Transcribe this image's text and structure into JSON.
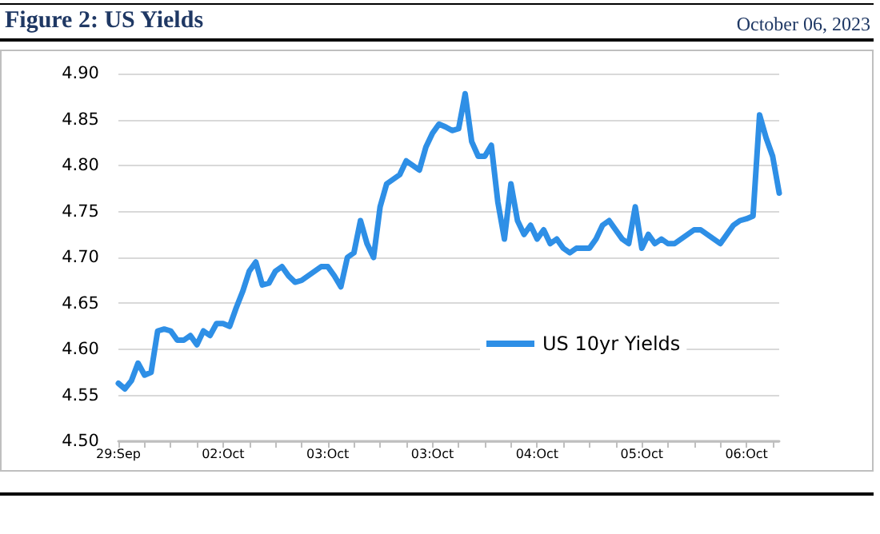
{
  "chart_data": {
    "type": "line",
    "title": "Figure 2: US Yields",
    "subtitle": "October 06, 2023",
    "categories": [
      "29:Sep",
      null,
      null,
      null,
      null,
      null,
      null,
      null,
      null,
      null,
      null,
      null,
      null,
      null,
      null,
      null,
      "02:Oct",
      null,
      null,
      null,
      null,
      null,
      null,
      null,
      null,
      null,
      null,
      null,
      null,
      null,
      null,
      null,
      "03:Oct",
      null,
      null,
      null,
      null,
      null,
      null,
      null,
      null,
      null,
      null,
      null,
      null,
      null,
      null,
      null,
      "03:Oct",
      null,
      null,
      null,
      null,
      null,
      null,
      null,
      null,
      null,
      null,
      null,
      null,
      null,
      null,
      null,
      "04:Oct",
      null,
      null,
      null,
      null,
      null,
      null,
      null,
      null,
      null,
      null,
      null,
      null,
      null,
      null,
      null,
      "05:Oct",
      null,
      null,
      null,
      null,
      null,
      null,
      null,
      null,
      null,
      null,
      null,
      null,
      null,
      null,
      null,
      "06:Oct",
      null,
      null,
      null,
      null,
      null
    ],
    "series": [
      {
        "name": "US 10yr Yields",
        "color": "#2e8fe6",
        "values": [
          4.563,
          4.557,
          4.566,
          4.585,
          4.572,
          4.575,
          4.62,
          4.622,
          4.62,
          4.61,
          4.61,
          4.615,
          4.605,
          4.62,
          4.615,
          4.628,
          4.628,
          4.625,
          4.645,
          4.663,
          4.685,
          4.695,
          4.67,
          4.672,
          4.685,
          4.69,
          4.68,
          4.673,
          4.675,
          4.68,
          4.685,
          4.69,
          4.69,
          4.68,
          4.668,
          4.7,
          4.705,
          4.74,
          4.715,
          4.7,
          4.755,
          4.78,
          4.785,
          4.79,
          4.805,
          4.8,
          4.795,
          4.82,
          4.835,
          4.845,
          4.842,
          4.838,
          4.84,
          4.878,
          4.826,
          4.81,
          4.81,
          4.822,
          4.76,
          4.72,
          4.78,
          4.74,
          4.725,
          4.735,
          4.72,
          4.73,
          4.715,
          4.72,
          4.71,
          4.705,
          4.71,
          4.71,
          4.71,
          4.72,
          4.735,
          4.74,
          4.73,
          4.72,
          4.715,
          4.755,
          4.71,
          4.725,
          4.715,
          4.72,
          4.715,
          4.715,
          4.72,
          4.725,
          4.73,
          4.73,
          4.725,
          4.72,
          4.715,
          4.725,
          4.735,
          4.74,
          4.742,
          4.745,
          4.855,
          4.83,
          4.81,
          4.77
        ]
      }
    ],
    "ylim": [
      4.5,
      4.9
    ],
    "yticks": [
      {
        "value": 4.5,
        "label": "4.50"
      },
      4.55,
      {
        "value": 4.6,
        "label": "4.60"
      },
      4.65,
      {
        "value": 4.7,
        "label": "4.70"
      },
      4.75,
      {
        "value": 4.8,
        "label": "4.80"
      },
      4.85,
      {
        "value": 4.9,
        "label": "4.90"
      }
    ],
    "grid": "y",
    "legend": "bottom right",
    "marker": "none",
    "line_style": "solid"
  }
}
